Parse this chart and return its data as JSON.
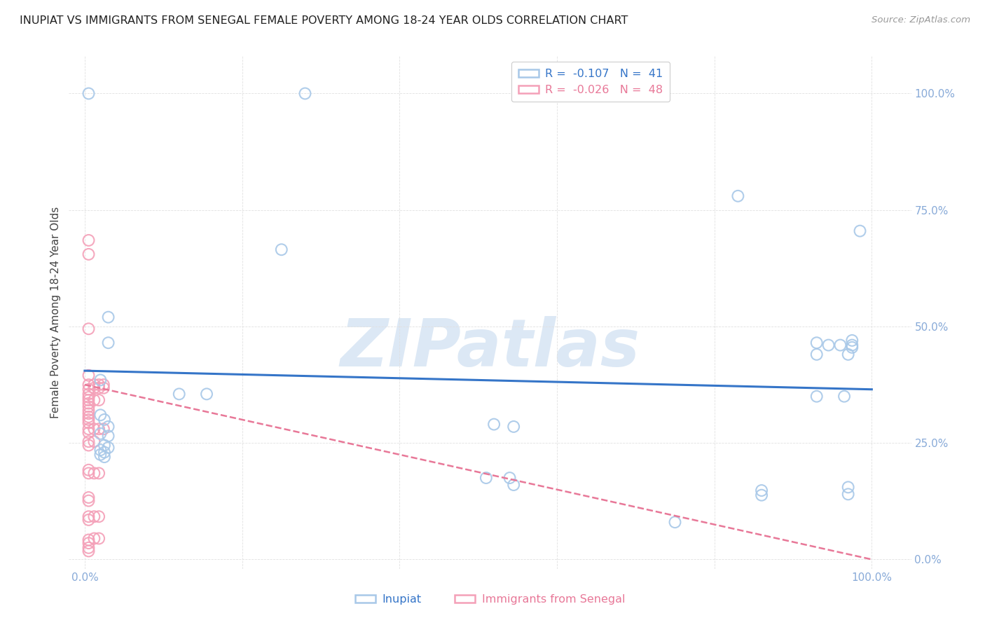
{
  "title": "INUPIAT VS IMMIGRANTS FROM SENEGAL FEMALE POVERTY AMONG 18-24 YEAR OLDS CORRELATION CHART",
  "source": "Source: ZipAtlas.com",
  "ylabel": "Female Poverty Among 18-24 Year Olds",
  "xlim": [
    -0.02,
    1.05
  ],
  "ylim": [
    -0.02,
    1.08
  ],
  "xtick_labels": [
    "0.0%",
    "",
    "",
    "",
    "",
    "100.0%"
  ],
  "ytick_labels_right": [
    "0.0%",
    "25.0%",
    "50.0%",
    "75.0%",
    "100.0%"
  ],
  "xtick_vals": [
    0.0,
    0.2,
    0.4,
    0.6,
    0.8,
    1.0
  ],
  "ytick_vals": [
    0.0,
    0.25,
    0.5,
    0.75,
    1.0
  ],
  "legend_entries": [
    {
      "label": "R =  -0.107   N =  41",
      "color": "#a8c8e8"
    },
    {
      "label": "R =  -0.026   N =  48",
      "color": "#f4a0b8"
    }
  ],
  "legend_bottom": [
    {
      "label": "Inupiat",
      "color": "#a8c8e8"
    },
    {
      "label": "Immigrants from Senegal",
      "color": "#f4a0b8"
    }
  ],
  "inupiat_scatter": [
    [
      0.005,
      1.0
    ],
    [
      0.28,
      1.0
    ],
    [
      0.03,
      0.52
    ],
    [
      0.03,
      0.465
    ],
    [
      0.25,
      0.665
    ],
    [
      0.83,
      0.78
    ],
    [
      0.985,
      0.705
    ],
    [
      0.93,
      0.465
    ],
    [
      0.96,
      0.46
    ],
    [
      0.975,
      0.47
    ],
    [
      0.975,
      0.455
    ],
    [
      0.93,
      0.35
    ],
    [
      0.965,
      0.35
    ],
    [
      0.02,
      0.385
    ],
    [
      0.12,
      0.355
    ],
    [
      0.155,
      0.355
    ],
    [
      0.02,
      0.31
    ],
    [
      0.03,
      0.285
    ],
    [
      0.02,
      0.27
    ],
    [
      0.03,
      0.265
    ],
    [
      0.025,
      0.245
    ],
    [
      0.03,
      0.24
    ],
    [
      0.02,
      0.235
    ],
    [
      0.025,
      0.23
    ],
    [
      0.52,
      0.29
    ],
    [
      0.545,
      0.285
    ],
    [
      0.51,
      0.175
    ],
    [
      0.54,
      0.175
    ],
    [
      0.545,
      0.16
    ],
    [
      0.75,
      0.08
    ],
    [
      0.86,
      0.148
    ],
    [
      0.86,
      0.138
    ],
    [
      0.97,
      0.155
    ],
    [
      0.97,
      0.14
    ],
    [
      0.975,
      0.46
    ],
    [
      0.945,
      0.46
    ],
    [
      0.93,
      0.44
    ],
    [
      0.97,
      0.44
    ],
    [
      0.02,
      0.225
    ],
    [
      0.025,
      0.22
    ],
    [
      0.025,
      0.3
    ]
  ],
  "senegal_scatter": [
    [
      0.005,
      0.685
    ],
    [
      0.005,
      0.655
    ],
    [
      0.005,
      0.495
    ],
    [
      0.005,
      0.395
    ],
    [
      0.005,
      0.375
    ],
    [
      0.005,
      0.365
    ],
    [
      0.005,
      0.355
    ],
    [
      0.005,
      0.348
    ],
    [
      0.005,
      0.342
    ],
    [
      0.005,
      0.335
    ],
    [
      0.005,
      0.328
    ],
    [
      0.005,
      0.32
    ],
    [
      0.005,
      0.313
    ],
    [
      0.005,
      0.306
    ],
    [
      0.005,
      0.3
    ],
    [
      0.005,
      0.293
    ],
    [
      0.005,
      0.28
    ],
    [
      0.005,
      0.272
    ],
    [
      0.005,
      0.253
    ],
    [
      0.005,
      0.245
    ],
    [
      0.005,
      0.192
    ],
    [
      0.005,
      0.185
    ],
    [
      0.005,
      0.133
    ],
    [
      0.005,
      0.126
    ],
    [
      0.005,
      0.092
    ],
    [
      0.005,
      0.085
    ],
    [
      0.005,
      0.042
    ],
    [
      0.005,
      0.035
    ],
    [
      0.005,
      0.025
    ],
    [
      0.005,
      0.018
    ],
    [
      0.012,
      0.375
    ],
    [
      0.012,
      0.368
    ],
    [
      0.012,
      0.342
    ],
    [
      0.012,
      0.28
    ],
    [
      0.012,
      0.253
    ],
    [
      0.012,
      0.185
    ],
    [
      0.012,
      0.092
    ],
    [
      0.012,
      0.045
    ],
    [
      0.018,
      0.375
    ],
    [
      0.018,
      0.368
    ],
    [
      0.018,
      0.342
    ],
    [
      0.018,
      0.28
    ],
    [
      0.018,
      0.185
    ],
    [
      0.018,
      0.092
    ],
    [
      0.018,
      0.045
    ],
    [
      0.024,
      0.375
    ],
    [
      0.024,
      0.368
    ],
    [
      0.024,
      0.28
    ]
  ],
  "inupiat_line_x": [
    0.0,
    1.0
  ],
  "inupiat_line_y": [
    0.405,
    0.365
  ],
  "senegal_line_x": [
    0.0,
    1.0
  ],
  "senegal_line_y": [
    0.375,
    0.0
  ],
  "inupiat_scatter_color": "#a8c8e8",
  "senegal_scatter_color": "#f4a0b8",
  "inupiat_line_color": "#3575c8",
  "senegal_line_color": "#e87898",
  "tick_color": "#88aad8",
  "background_color": "#ffffff",
  "grid_color": "#e0e0e0",
  "watermark_text": "ZIPatlas",
  "watermark_color": "#dce8f5"
}
